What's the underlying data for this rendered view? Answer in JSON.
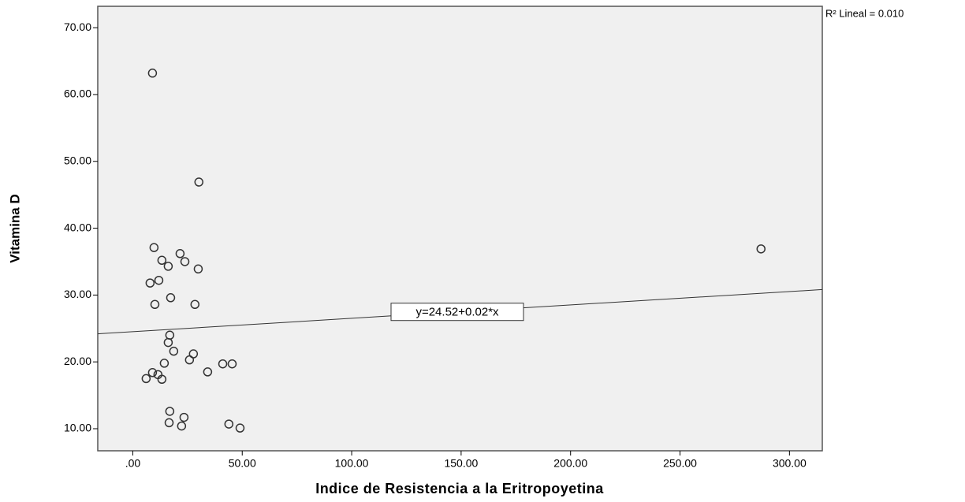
{
  "chart_data": {
    "type": "scatter",
    "x_label": "Indice de Resistencia a la Eritropoyetina",
    "y_label": "Vitamina D",
    "r2_label": "R² Lineal = 0.010",
    "fit_line": {
      "intercept": 24.52,
      "slope": 0.02,
      "label": "y=24.52+0.02*x"
    },
    "x": [
      9.0,
      30.2,
      9.7,
      21.6,
      13.3,
      23.8,
      16.2,
      29.9,
      7.9,
      11.9,
      17.3,
      10.1,
      28.4,
      16.9,
      16.2,
      18.7,
      27.7,
      25.9,
      14.4,
      41.1,
      45.4,
      34.2,
      9.0,
      11.5,
      6.1,
      13.3,
      16.9,
      23.4,
      16.6,
      22.3,
      43.9,
      49.0,
      287.0
    ],
    "values": [
      63.2,
      46.9,
      37.1,
      36.2,
      35.2,
      35.0,
      34.3,
      33.9,
      31.8,
      32.2,
      29.6,
      28.6,
      28.6,
      24.0,
      22.9,
      21.6,
      21.2,
      20.3,
      19.8,
      19.7,
      19.7,
      18.5,
      18.4,
      18.1,
      17.5,
      17.4,
      12.6,
      11.7,
      10.9,
      10.4,
      10.7,
      10.1,
      36.9
    ],
    "color": "#333333",
    "xlim": [
      -16,
      315
    ],
    "ylim": [
      6.7,
      73.2
    ],
    "xticks": [
      {
        "value": 0,
        "label": ".00"
      },
      {
        "value": 50,
        "label": "50.00"
      },
      {
        "value": 100,
        "label": "100.00"
      },
      {
        "value": 150,
        "label": "150.00"
      },
      {
        "value": 200,
        "label": "200.00"
      },
      {
        "value": 250,
        "label": "250.00"
      },
      {
        "value": 300,
        "label": "300.00"
      }
    ],
    "yticks": [
      {
        "value": 10,
        "label": "10.00"
      },
      {
        "value": 20,
        "label": "20.00"
      },
      {
        "value": 30,
        "label": "30.00"
      },
      {
        "value": 40,
        "label": "40.00"
      },
      {
        "value": 50,
        "label": "50.00"
      },
      {
        "value": 60,
        "label": "60.00"
      },
      {
        "value": 70,
        "label": "70.00"
      }
    ]
  }
}
